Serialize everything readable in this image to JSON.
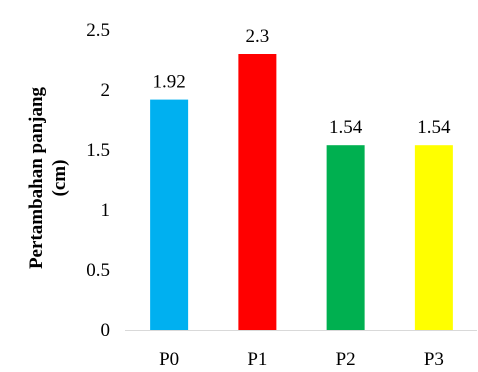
{
  "chart_data": {
    "type": "bar",
    "title": "",
    "xlabel": "",
    "ylabel": "Pertambahan panjang (cm)",
    "ylabel_lines": [
      "Pertambahan panjang",
      "(cm)"
    ],
    "categories": [
      "P0",
      "P1",
      "P2",
      "P3"
    ],
    "values": [
      1.92,
      2.3,
      1.54,
      1.54
    ],
    "data_labels": [
      "1.92",
      "2.3",
      "1.54",
      "1.54"
    ],
    "colors": [
      "#00B0F0",
      "#FF0000",
      "#00B050",
      "#FFFF00"
    ],
    "ylim": [
      0,
      2.5
    ],
    "yticks": [
      0,
      0.5,
      1,
      1.5,
      2,
      2.5
    ],
    "ytick_labels": [
      "0",
      "0.5",
      "1",
      "1.5",
      "2",
      "2.5"
    ],
    "grid": false,
    "legend": "none"
  }
}
